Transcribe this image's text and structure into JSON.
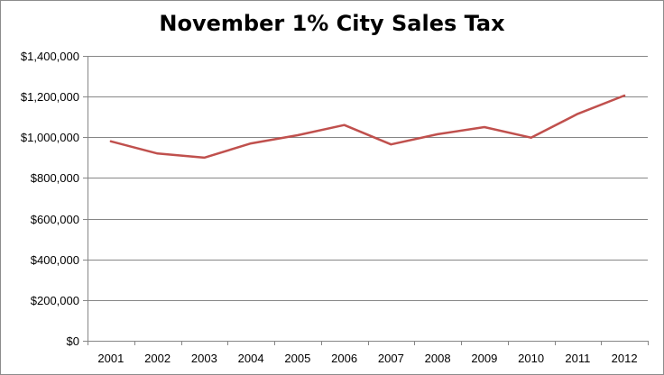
{
  "chart_data": {
    "type": "line",
    "title": "November 1% City Sales Tax",
    "xlabel": "",
    "ylabel": "",
    "categories": [
      "2001",
      "2002",
      "2003",
      "2004",
      "2005",
      "2006",
      "2007",
      "2008",
      "2009",
      "2010",
      "2011",
      "2012"
    ],
    "series": [
      {
        "values": [
          980000,
          920000,
          900000,
          970000,
          1010000,
          1060000,
          965000,
          1015000,
          1050000,
          998000,
          1115000,
          1205000
        ]
      }
    ],
    "ylim": [
      0,
      1400000
    ],
    "y_ticks": [
      0,
      200000,
      400000,
      600000,
      800000,
      1000000,
      1200000,
      1400000
    ],
    "y_tick_labels": [
      "$0",
      "$200,000",
      "$400,000",
      "$600,000",
      "$800,000",
      "$1,000,000",
      "$1,200,000",
      "$1,400,000"
    ],
    "grid": "horizontal",
    "legend": "none",
    "colors": {
      "line": "#c0504d",
      "grid": "#868686",
      "axis": "#868686"
    }
  }
}
